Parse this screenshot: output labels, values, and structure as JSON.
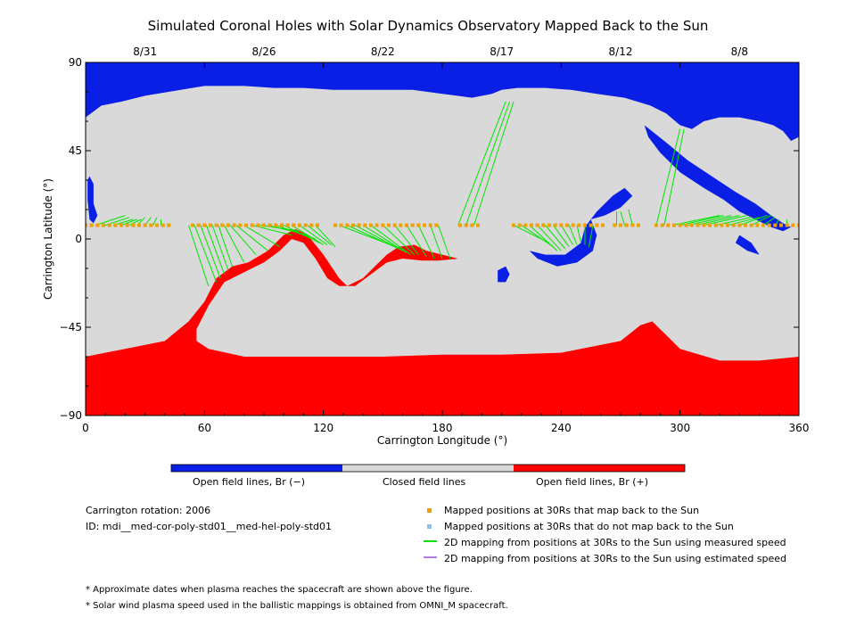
{
  "chart_data": {
    "type": "map",
    "title": "Simulated Coronal Holes with Solar Dynamics Observatory Mapped Back to the Sun",
    "xlabel": "Carrington Longitude (°)",
    "ylabel": "Carrington Latitude (°)",
    "xlim": [
      0,
      360
    ],
    "ylim": [
      -90,
      90
    ],
    "x_ticks": [
      0,
      60,
      120,
      180,
      240,
      300,
      360
    ],
    "y_ticks": [
      -90,
      -45,
      0,
      45,
      90
    ],
    "y_tick_labels": [
      "−90",
      "−45",
      "0",
      "45",
      "90"
    ],
    "top_axis_dates": [
      {
        "label": "8/31",
        "lon": 30
      },
      {
        "label": "8/26",
        "lon": 90
      },
      {
        "label": "8/22",
        "lon": 150
      },
      {
        "label": "8/17",
        "lon": 210
      },
      {
        "label": "8/12",
        "lon": 270
      },
      {
        "label": "8/8",
        "lon": 330
      }
    ],
    "colors": {
      "open_negative": "#0a1fe6",
      "closed": "#d9d9d9",
      "open_positive": "#ff0000",
      "mapped_ok": "#f0a000",
      "mapped_not": "#87c0ef",
      "measured_line": "#00e600",
      "estimated_line": "#b07fe0"
    },
    "colorbar": [
      {
        "label": "Open field lines, Br (−)",
        "color": "#0a1fe6"
      },
      {
        "label": "Closed field lines",
        "color": "#d9d9d9"
      },
      {
        "label": "Open field lines, Br (+)",
        "color": "#ff0000"
      }
    ],
    "spacecraft_latitude": 7,
    "mapped_points_lon_start": 0,
    "mapped_points_lon_end": 360,
    "mapped_points_lon_step": 3,
    "mapped_points_gaps": [
      [
        44,
        52
      ],
      [
        120,
        124
      ],
      [
        180,
        186
      ],
      [
        200,
        214
      ],
      [
        262,
        266
      ],
      [
        280,
        286
      ]
    ],
    "measured_mappings": [
      {
        "from": [
          5,
          7
        ],
        "to": [
          20,
          12
        ]
      },
      {
        "from": [
          10,
          7
        ],
        "to": [
          22,
          11
        ]
      },
      {
        "from": [
          14,
          7
        ],
        "to": [
          24,
          10
        ]
      },
      {
        "from": [
          18,
          7
        ],
        "to": [
          26,
          10
        ]
      },
      {
        "from": [
          22,
          7
        ],
        "to": [
          28,
          10
        ]
      },
      {
        "from": [
          26,
          7
        ],
        "to": [
          30,
          11
        ]
      },
      {
        "from": [
          30,
          7
        ],
        "to": [
          33,
          11
        ]
      },
      {
        "from": [
          34,
          7
        ],
        "to": [
          36,
          11
        ]
      },
      {
        "from": [
          38,
          7
        ],
        "to": [
          38,
          10
        ]
      },
      {
        "from": [
          52,
          7
        ],
        "to": [
          62,
          -24
        ]
      },
      {
        "from": [
          55,
          7
        ],
        "to": [
          66,
          -22
        ]
      },
      {
        "from": [
          58,
          7
        ],
        "to": [
          68,
          -20
        ]
      },
      {
        "from": [
          61,
          7
        ],
        "to": [
          70,
          -18
        ]
      },
      {
        "from": [
          64,
          7
        ],
        "to": [
          72,
          -16
        ]
      },
      {
        "from": [
          67,
          7
        ],
        "to": [
          74,
          -14
        ]
      },
      {
        "from": [
          70,
          7
        ],
        "to": [
          80,
          -12
        ]
      },
      {
        "from": [
          73,
          7
        ],
        "to": [
          86,
          -8
        ]
      },
      {
        "from": [
          76,
          7
        ],
        "to": [
          92,
          -6
        ]
      },
      {
        "from": [
          80,
          7
        ],
        "to": [
          98,
          -4
        ]
      },
      {
        "from": [
          84,
          7
        ],
        "to": [
          104,
          2
        ]
      },
      {
        "from": [
          88,
          7
        ],
        "to": [
          108,
          4
        ]
      },
      {
        "from": [
          92,
          7
        ],
        "to": [
          112,
          2
        ]
      },
      {
        "from": [
          96,
          7
        ],
        "to": [
          116,
          0
        ]
      },
      {
        "from": [
          100,
          7
        ],
        "to": [
          118,
          -2
        ]
      },
      {
        "from": [
          104,
          7
        ],
        "to": [
          120,
          -3
        ]
      },
      {
        "from": [
          108,
          7
        ],
        "to": [
          122,
          -3
        ]
      },
      {
        "from": [
          112,
          7
        ],
        "to": [
          124,
          -3
        ]
      },
      {
        "from": [
          116,
          7
        ],
        "to": [
          126,
          -4
        ]
      },
      {
        "from": [
          128,
          7
        ],
        "to": [
          154,
          -3
        ]
      },
      {
        "from": [
          132,
          7
        ],
        "to": [
          158,
          -5
        ]
      },
      {
        "from": [
          136,
          7
        ],
        "to": [
          160,
          -6
        ]
      },
      {
        "from": [
          140,
          7
        ],
        "to": [
          162,
          -7
        ]
      },
      {
        "from": [
          144,
          7
        ],
        "to": [
          164,
          -8
        ]
      },
      {
        "from": [
          150,
          7
        ],
        "to": [
          166,
          -8
        ]
      },
      {
        "from": [
          156,
          7
        ],
        "to": [
          168,
          -8
        ]
      },
      {
        "from": [
          162,
          7
        ],
        "to": [
          172,
          -9
        ]
      },
      {
        "from": [
          168,
          7
        ],
        "to": [
          176,
          -10
        ]
      },
      {
        "from": [
          174,
          7
        ],
        "to": [
          180,
          -10
        ]
      },
      {
        "from": [
          178,
          7
        ],
        "to": [
          184,
          -10
        ]
      },
      {
        "from": [
          188,
          7
        ],
        "to": [
          212,
          70
        ]
      },
      {
        "from": [
          192,
          7
        ],
        "to": [
          214,
          70
        ]
      },
      {
        "from": [
          196,
          7
        ],
        "to": [
          216,
          70
        ]
      },
      {
        "from": [
          216,
          7
        ],
        "to": [
          234,
          -2
        ]
      },
      {
        "from": [
          220,
          7
        ],
        "to": [
          236,
          -4
        ]
      },
      {
        "from": [
          224,
          7
        ],
        "to": [
          238,
          -6
        ]
      },
      {
        "from": [
          228,
          7
        ],
        "to": [
          240,
          -6
        ]
      },
      {
        "from": [
          232,
          7
        ],
        "to": [
          242,
          -5
        ]
      },
      {
        "from": [
          236,
          7
        ],
        "to": [
          244,
          -4
        ]
      },
      {
        "from": [
          240,
          7
        ],
        "to": [
          246,
          -3
        ]
      },
      {
        "from": [
          244,
          7
        ],
        "to": [
          248,
          -3
        ]
      },
      {
        "from": [
          248,
          7
        ],
        "to": [
          250,
          -2
        ]
      },
      {
        "from": [
          252,
          7
        ],
        "to": [
          252,
          -3
        ]
      },
      {
        "from": [
          256,
          7
        ],
        "to": [
          254,
          -4
        ]
      },
      {
        "from": [
          268,
          7
        ],
        "to": [
          268,
          14
        ]
      },
      {
        "from": [
          272,
          7
        ],
        "to": [
          270,
          14
        ]
      },
      {
        "from": [
          276,
          7
        ],
        "to": [
          274,
          15
        ]
      },
      {
        "from": [
          288,
          7
        ],
        "to": [
          300,
          56
        ]
      },
      {
        "from": [
          292,
          7
        ],
        "to": [
          302,
          56
        ]
      },
      {
        "from": [
          296,
          7
        ],
        "to": [
          320,
          12
        ]
      },
      {
        "from": [
          300,
          7
        ],
        "to": [
          322,
          12
        ]
      },
      {
        "from": [
          304,
          7
        ],
        "to": [
          326,
          12
        ]
      },
      {
        "from": [
          308,
          7
        ],
        "to": [
          330,
          12
        ]
      },
      {
        "from": [
          312,
          7
        ],
        "to": [
          334,
          12
        ]
      },
      {
        "from": [
          318,
          7
        ],
        "to": [
          336,
          11
        ]
      },
      {
        "from": [
          324,
          7
        ],
        "to": [
          340,
          11
        ]
      },
      {
        "from": [
          330,
          7
        ],
        "to": [
          344,
          12
        ]
      },
      {
        "from": [
          336,
          7
        ],
        "to": [
          346,
          12
        ]
      },
      {
        "from": [
          342,
          7
        ],
        "to": [
          348,
          11
        ]
      },
      {
        "from": [
          348,
          7
        ],
        "to": [
          350,
          10
        ]
      },
      {
        "from": [
          354,
          7
        ],
        "to": [
          354,
          10
        ]
      }
    ],
    "regions": {
      "north_polar_boundary": [
        [
          0,
          62
        ],
        [
          8,
          68
        ],
        [
          18,
          70
        ],
        [
          30,
          73
        ],
        [
          48,
          76
        ],
        [
          60,
          78
        ],
        [
          80,
          78
        ],
        [
          95,
          77
        ],
        [
          110,
          77
        ],
        [
          125,
          76
        ],
        [
          140,
          76
        ],
        [
          155,
          76
        ],
        [
          165,
          76
        ],
        [
          180,
          74
        ],
        [
          195,
          72
        ],
        [
          205,
          74
        ],
        [
          210,
          76
        ],
        [
          218,
          77
        ],
        [
          232,
          77
        ],
        [
          245,
          76
        ],
        [
          258,
          74
        ],
        [
          272,
          72
        ],
        [
          285,
          68
        ],
        [
          293,
          64
        ],
        [
          300,
          58
        ],
        [
          306,
          56
        ],
        [
          312,
          60
        ],
        [
          320,
          62
        ],
        [
          330,
          62
        ],
        [
          340,
          60
        ],
        [
          347,
          58
        ],
        [
          352,
          55
        ],
        [
          356,
          50
        ],
        [
          360,
          52
        ]
      ],
      "south_red_boundary": [
        [
          0,
          -60
        ],
        [
          20,
          -56
        ],
        [
          40,
          -52
        ],
        [
          52,
          -42
        ],
        [
          60,
          -32
        ],
        [
          66,
          -20
        ],
        [
          74,
          -14
        ],
        [
          82,
          -12
        ],
        [
          92,
          -6
        ],
        [
          100,
          2
        ],
        [
          106,
          5
        ],
        [
          112,
          2
        ],
        [
          120,
          -8
        ],
        [
          128,
          -20
        ],
        [
          132,
          -24
        ],
        [
          140,
          -20
        ],
        [
          146,
          -14
        ],
        [
          152,
          -8
        ],
        [
          158,
          -4
        ],
        [
          166,
          -3
        ],
        [
          172,
          -6
        ],
        [
          180,
          -8
        ],
        [
          188,
          -10
        ],
        [
          178,
          -11
        ],
        [
          170,
          -11
        ],
        [
          160,
          -10
        ],
        [
          152,
          -12
        ],
        [
          144,
          -18
        ],
        [
          136,
          -24
        ],
        [
          128,
          -24
        ],
        [
          122,
          -20
        ],
        [
          116,
          -10
        ],
        [
          110,
          -2
        ],
        [
          104,
          0
        ],
        [
          98,
          -6
        ],
        [
          90,
          -12
        ],
        [
          82,
          -16
        ],
        [
          70,
          -22
        ],
        [
          62,
          -34
        ],
        [
          56,
          -46
        ],
        [
          56,
          -52
        ],
        [
          62,
          -56
        ],
        [
          80,
          -60
        ],
        [
          110,
          -60
        ],
        [
          150,
          -60
        ],
        [
          180,
          -59
        ],
        [
          210,
          -59
        ],
        [
          240,
          -58
        ],
        [
          270,
          -52
        ],
        [
          280,
          -44
        ],
        [
          286,
          -42
        ],
        [
          292,
          -48
        ],
        [
          300,
          -56
        ],
        [
          320,
          -62
        ],
        [
          340,
          -62
        ],
        [
          360,
          -60
        ]
      ]
    }
  },
  "legend_bar": {
    "open_neg": "Open field lines, Br (−)",
    "closed": "Closed field lines",
    "open_pos": "Open field lines, Br (+)"
  },
  "info": {
    "rotation": "Carrington rotation: 2006",
    "id": "ID: mdi__med-cor-poly-std01__med-hel-poly-std01"
  },
  "symbol_legend": {
    "mapped_ok": "Mapped positions at 30Rs that map back to the Sun",
    "mapped_not": "Mapped positions at 30Rs that do not map back to the Sun",
    "measured": "2D mapping from positions at 30Rs to the Sun using measured speed",
    "estimated": "2D mapping from positions at 30Rs to the Sun using estimated speed"
  },
  "notes": {
    "n1": "* Approximate dates when plasma reaches the spacecraft are shown above the figure.",
    "n2": "* Solar wind plasma speed used in the ballistic mappings is obtained from OMNI_M spacecraft."
  }
}
